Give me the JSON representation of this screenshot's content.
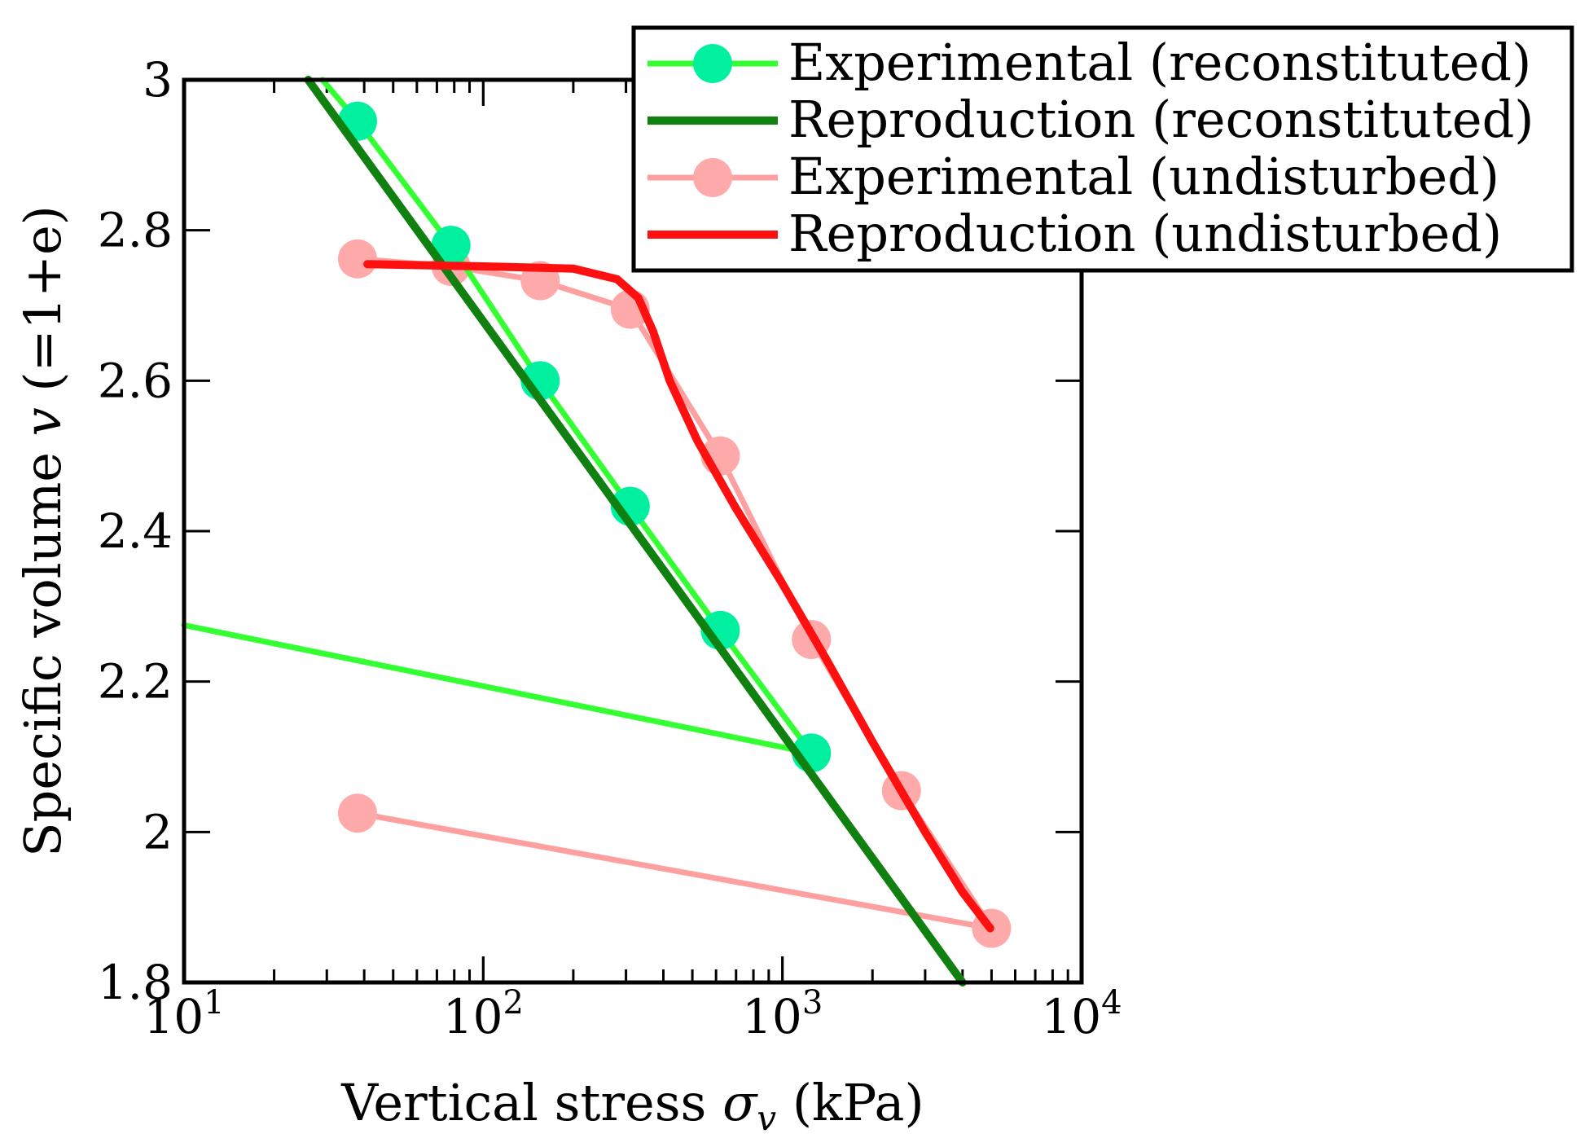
{
  "chart_data": {
    "type": "line",
    "title": "",
    "x_scale": "log",
    "xlim": [
      10,
      10000
    ],
    "ylim": [
      1.8,
      3.0
    ],
    "xlabel": {
      "prefix": "Vertical stress ",
      "symbol": "σ",
      "subscript": "v",
      "suffix": " (kPa)"
    },
    "ylabel": {
      "prefix": "Specific volume ",
      "symbol": "v",
      "suffix": " (=1+e)"
    },
    "x_ticks": [
      {
        "base": "10",
        "exp": "1",
        "value": 10
      },
      {
        "base": "10",
        "exp": "2",
        "value": 100
      },
      {
        "base": "10",
        "exp": "3",
        "value": 1000
      },
      {
        "base": "10",
        "exp": "4",
        "value": 10000
      }
    ],
    "y_ticks": [
      {
        "label": "1.8",
        "value": 1.8
      },
      {
        "label": "2",
        "value": 2.0
      },
      {
        "label": "2.2",
        "value": 2.2
      },
      {
        "label": "2.4",
        "value": 2.4
      },
      {
        "label": "2.6",
        "value": 2.6
      },
      {
        "label": "2.8",
        "value": 2.8
      },
      {
        "label": "3",
        "value": 3.0
      }
    ],
    "legend_position": "top-right",
    "series": [
      {
        "name": "Experimental (reconstituted)",
        "color": "#33ff33",
        "marker_color": "#00f0a0",
        "markers": true,
        "points": [
          [
            10,
            2.275
          ],
          [
            1250,
            2.105
          ]
        ],
        "marker_points": [
          [
            1250,
            2.105
          ]
        ],
        "loading_points": [
          [
            29,
            3.0
          ],
          [
            38,
            2.945
          ],
          [
            78,
            2.78
          ],
          [
            155,
            2.6
          ],
          [
            310,
            2.433
          ],
          [
            620,
            2.268
          ],
          [
            1250,
            2.105
          ]
        ]
      },
      {
        "name": "Reproduction (reconstituted)",
        "color": "#108010",
        "markers": false,
        "points": [
          [
            26,
            3.0
          ],
          [
            4000,
            1.8
          ]
        ]
      },
      {
        "name": "Experimental (undisturbed)",
        "color": "#ffa0a0",
        "marker_color": "#ffaaaa",
        "markers": true,
        "points": [
          [
            38,
            2.762
          ],
          [
            78,
            2.752
          ],
          [
            155,
            2.733
          ],
          [
            310,
            2.695
          ],
          [
            620,
            2.5
          ],
          [
            1250,
            2.256
          ],
          [
            2500,
            2.055
          ],
          [
            5000,
            1.872
          ]
        ],
        "unloading_points": [
          [
            38,
            2.025
          ],
          [
            5000,
            1.872
          ]
        ]
      },
      {
        "name": "Reproduction (undisturbed)",
        "color": "#ff1010",
        "markers": false,
        "points": [
          [
            41,
            2.755
          ],
          [
            100,
            2.752
          ],
          [
            200,
            2.749
          ],
          [
            280,
            2.735
          ],
          [
            330,
            2.71
          ],
          [
            370,
            2.665
          ],
          [
            420,
            2.6
          ],
          [
            520,
            2.52
          ],
          [
            700,
            2.43
          ],
          [
            1000,
            2.33
          ],
          [
            1400,
            2.23
          ],
          [
            2000,
            2.12
          ],
          [
            3000,
            2.0
          ],
          [
            4000,
            1.92
          ],
          [
            4950,
            1.872
          ]
        ]
      }
    ]
  }
}
